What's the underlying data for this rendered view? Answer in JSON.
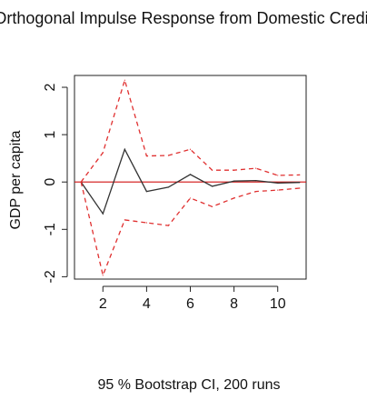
{
  "chart_data": {
    "type": "line",
    "title": "Orthogonal Impulse Response from Domestic Credit",
    "xlabel": "95 % Bootstrap CI,  200 runs",
    "ylabel": "GDP per capita",
    "xlim": [
      0.7,
      11.3
    ],
    "ylim": [
      -2.05,
      2.25
    ],
    "xticks": [
      2,
      4,
      6,
      8,
      10
    ],
    "yticks": [
      -2,
      -1,
      0,
      1,
      2
    ],
    "zero_line": 0,
    "grid": false,
    "x": [
      1,
      2,
      3,
      4,
      5,
      6,
      7,
      8,
      9,
      10,
      11
    ],
    "series": [
      {
        "role": "response",
        "color": "#333333",
        "linestyle": "solid",
        "values": [
          0.0,
          -0.67,
          0.69,
          -0.2,
          -0.11,
          0.16,
          -0.09,
          0.02,
          0.03,
          -0.02,
          -0.01
        ]
      },
      {
        "role": "upper",
        "color": "#e03030",
        "linestyle": "dashed",
        "values": [
          0.0,
          0.62,
          2.15,
          0.55,
          0.56,
          0.69,
          0.25,
          0.25,
          0.29,
          0.14,
          0.15
        ]
      },
      {
        "role": "lower",
        "color": "#e03030",
        "linestyle": "dashed",
        "values": [
          0.0,
          -1.97,
          -0.8,
          -0.86,
          -0.92,
          -0.34,
          -0.52,
          -0.34,
          -0.2,
          -0.17,
          -0.13
        ]
      }
    ],
    "zero_line_color": "#d01010"
  }
}
